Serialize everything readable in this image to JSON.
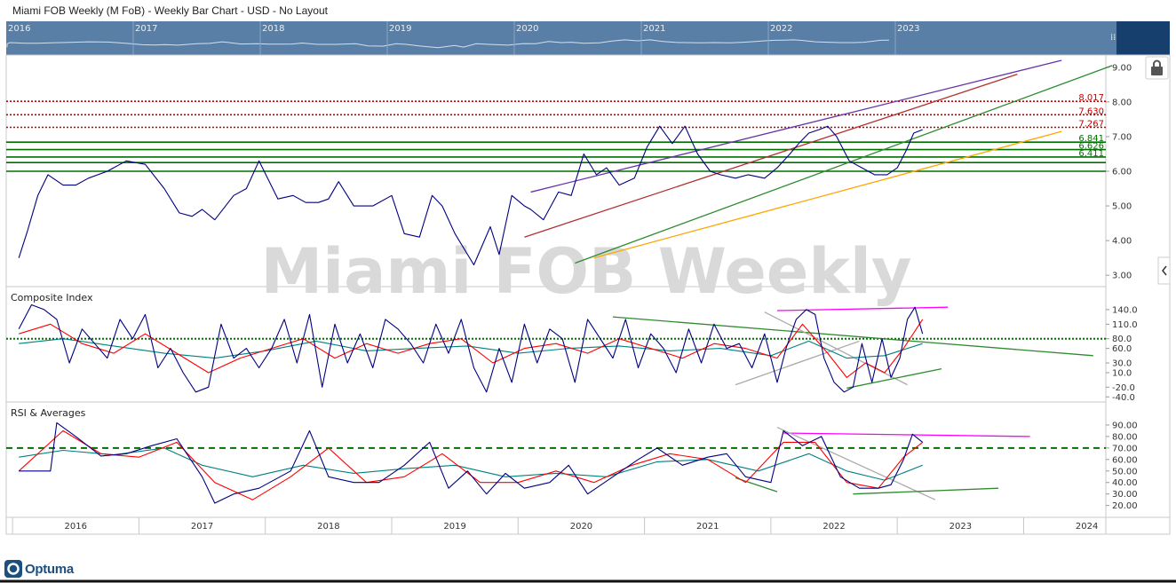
{
  "header": {
    "title": "Miami FOB Weekly (M FoB) - Weekly Bar Chart - USD - No Layout"
  },
  "navigator": {
    "years": [
      "2016",
      "2017",
      "2018",
      "2019",
      "2020",
      "2021",
      "2022",
      "2023"
    ]
  },
  "watermark": "Miami FOB Weekly",
  "brand": "Optuma",
  "icons": {
    "lock": "lock-icon",
    "expand": "chevron-left-icon",
    "logo": "optuma-logo-icon"
  },
  "colors": {
    "navigator_bg": "#5a7fa6",
    "navigator_right": "#173f6e",
    "price_line": "#000080",
    "red_avg": "#ff0000",
    "teal_avg": "#008080",
    "green_level": "#007000",
    "red_level": "#c00000"
  },
  "chart_data": [
    {
      "type": "line",
      "pane": "price",
      "x_axis_years": [
        "2016",
        "2017",
        "2018",
        "2019",
        "2020",
        "2021",
        "2022",
        "2023",
        "2024"
      ],
      "ylim": [
        2.8,
        9.2
      ],
      "y_ticks": [
        "9.00",
        "8.00",
        "7.00",
        "6.00",
        "5.00",
        "4.00",
        "3.00"
      ],
      "series": [
        {
          "x": [
            2015.55,
            2015.62,
            2015.7,
            2015.78,
            2015.9,
            2016.0,
            2016.1,
            2016.25,
            2016.4,
            2016.55,
            2016.7,
            2016.82,
            2016.92,
            2017.0,
            2017.1,
            2017.25,
            2017.35,
            2017.45,
            2017.6,
            2017.72,
            2017.82,
            2017.92,
            2018.0,
            2018.08,
            2018.2,
            2018.35,
            2018.5,
            2018.6,
            2018.72,
            2018.82,
            2018.9,
            2019.0,
            2019.15,
            2019.28,
            2019.35,
            2019.45,
            2019.55,
            2019.6,
            2019.7,
            2019.82,
            2019.92,
            2020.02,
            2020.12,
            2020.2,
            2020.3,
            2020.42,
            2020.52,
            2020.62,
            2020.72,
            2020.82,
            2020.92,
            2021.02,
            2021.1,
            2021.22,
            2021.32,
            2021.45,
            2021.55,
            2021.65,
            2021.72,
            2021.8,
            2021.88,
            2021.95,
            2022.02,
            2022.12,
            2022.22,
            2022.32,
            2022.42,
            2022.5,
            2022.57,
            2022.63,
            2022.7
          ],
          "y": [
            3.5,
            4.3,
            5.3,
            5.9,
            5.6,
            5.6,
            5.8,
            6.0,
            6.3,
            6.2,
            5.5,
            4.8,
            4.7,
            4.9,
            4.6,
            5.3,
            5.5,
            6.3,
            5.2,
            5.3,
            5.1,
            5.1,
            5.2,
            5.7,
            5.0,
            5.0,
            5.3,
            4.2,
            4.1,
            5.3,
            5.0,
            4.2,
            3.3,
            4.4,
            3.6,
            5.3,
            5.0,
            4.9,
            4.6,
            5.4,
            5.3,
            6.5,
            5.9,
            6.1,
            5.6,
            5.8,
            6.7,
            7.3,
            6.8,
            7.3,
            6.5,
            6.0,
            5.9,
            5.8,
            5.9,
            5.8,
            6.1,
            6.5,
            6.8,
            7.1,
            7.2,
            7.3,
            7.0,
            6.3,
            6.1,
            5.9,
            5.9,
            6.1,
            6.6,
            7.1,
            7.2
          ]
        }
      ],
      "horizontal_levels": [
        {
          "value": 8.017,
          "label": "8.017",
          "color": "#c00000",
          "style": "dotted"
        },
        {
          "value": 7.63,
          "label": "7.630",
          "color": "#c00000",
          "style": "dotted"
        },
        {
          "value": 7.267,
          "label": "7.267",
          "color": "#c00000",
          "style": "dotted"
        },
        {
          "value": 6.841,
          "label": "6.841",
          "color": "#007000",
          "style": "solid"
        },
        {
          "value": 6.626,
          "label": "6.626",
          "color": "#007000",
          "style": "solid"
        },
        {
          "value": 6.411,
          "label": "6.411",
          "color": "#007000",
          "style": "solid"
        },
        {
          "value": 6.25,
          "label": "",
          "color": "#007000",
          "style": "solid"
        },
        {
          "value": 6.0,
          "label": "",
          "color": "#007000",
          "style": "solid"
        }
      ],
      "trendlines": [
        {
          "color": "#6633aa",
          "x1": 2019.6,
          "y1": 5.4,
          "x2": 2023.8,
          "y2": 9.2
        },
        {
          "color": "#b03030",
          "x1": 2019.55,
          "y1": 4.1,
          "x2": 2023.45,
          "y2": 8.8
        },
        {
          "color": "#2e8b2e",
          "x1": 2019.95,
          "y1": 3.35,
          "x2": 2024.2,
          "y2": 9.05
        },
        {
          "color": "#ffa500",
          "x1": 2020.1,
          "y1": 3.5,
          "x2": 2023.8,
          "y2": 7.15
        }
      ]
    },
    {
      "type": "line",
      "pane": "composite",
      "title": "Composite Index",
      "ylim": [
        -45,
        160
      ],
      "y_ticks": [
        "140.0",
        "110.0",
        "80.0",
        "60.0",
        "30.0",
        "10.0",
        "-20.0",
        "-40.0"
      ],
      "reference_line": {
        "value": 80,
        "color": "#007000",
        "style": "dotted"
      },
      "series": [
        {
          "color": "#000080",
          "x": [
            2015.55,
            2015.65,
            2015.75,
            2015.85,
            2015.95,
            2016.05,
            2016.15,
            2016.25,
            2016.35,
            2016.45,
            2016.55,
            2016.65,
            2016.75,
            2016.85,
            2016.95,
            2017.05,
            2017.15,
            2017.25,
            2017.35,
            2017.45,
            2017.55,
            2017.65,
            2017.75,
            2017.85,
            2017.95,
            2018.05,
            2018.15,
            2018.25,
            2018.35,
            2018.45,
            2018.55,
            2018.65,
            2018.75,
            2018.85,
            2018.95,
            2019.05,
            2019.15,
            2019.25,
            2019.35,
            2019.45,
            2019.55,
            2019.65,
            2019.75,
            2019.85,
            2019.95,
            2020.05,
            2020.15,
            2020.25,
            2020.35,
            2020.45,
            2020.55,
            2020.65,
            2020.75,
            2020.85,
            2020.95,
            2021.05,
            2021.15,
            2021.25,
            2021.35,
            2021.45,
            2021.55,
            2021.62,
            2021.7,
            2021.78,
            2021.85,
            2021.92,
            2022.0,
            2022.08,
            2022.15,
            2022.22,
            2022.3,
            2022.38,
            2022.45,
            2022.52,
            2022.58,
            2022.64,
            2022.7
          ],
          "y": [
            100,
            150,
            140,
            120,
            30,
            100,
            70,
            40,
            120,
            80,
            130,
            20,
            60,
            10,
            -30,
            -20,
            110,
            40,
            60,
            20,
            60,
            120,
            30,
            130,
            -20,
            110,
            30,
            90,
            20,
            120,
            100,
            70,
            30,
            110,
            50,
            120,
            20,
            -30,
            60,
            -10,
            110,
            30,
            100,
            80,
            -10,
            120,
            80,
            40,
            120,
            20,
            90,
            60,
            10,
            100,
            30,
            110,
            60,
            70,
            20,
            90,
            -10,
            60,
            120,
            140,
            130,
            40,
            -10,
            -30,
            -20,
            70,
            -10,
            80,
            0,
            40,
            120,
            145,
            90
          ]
        },
        {
          "color": "#ff0000",
          "x": [
            2015.55,
            2015.8,
            2016.05,
            2016.3,
            2016.55,
            2016.8,
            2017.05,
            2017.3,
            2017.55,
            2017.8,
            2018.05,
            2018.3,
            2018.55,
            2018.8,
            2019.05,
            2019.3,
            2019.55,
            2019.8,
            2020.05,
            2020.3,
            2020.55,
            2020.8,
            2021.05,
            2021.3,
            2021.55,
            2021.75,
            2021.95,
            2022.1,
            2022.25,
            2022.4,
            2022.55,
            2022.7
          ],
          "y": [
            90,
            110,
            70,
            50,
            90,
            50,
            10,
            40,
            60,
            80,
            40,
            70,
            50,
            70,
            80,
            30,
            60,
            70,
            50,
            80,
            60,
            40,
            70,
            60,
            40,
            110,
            50,
            0,
            30,
            10,
            60,
            120
          ]
        },
        {
          "color": "#008080",
          "x": [
            2015.55,
            2015.9,
            2016.3,
            2016.7,
            2017.1,
            2017.5,
            2017.9,
            2018.3,
            2018.7,
            2019.1,
            2019.5,
            2019.9,
            2020.3,
            2020.7,
            2021.1,
            2021.5,
            2021.8,
            2022.1,
            2022.4,
            2022.7
          ],
          "y": [
            70,
            80,
            65,
            50,
            40,
            55,
            75,
            55,
            60,
            65,
            50,
            60,
            65,
            55,
            60,
            45,
            75,
            40,
            45,
            70
          ]
        }
      ],
      "trendlines": [
        {
          "color": "#2e8b2e",
          "x1": 2020.25,
          "y1": 125,
          "x2": 2024.05,
          "y2": 45
        },
        {
          "color": "#ff00ff",
          "x1": 2021.55,
          "y1": 138,
          "x2": 2022.9,
          "y2": 145
        },
        {
          "color": "#aaaaaa",
          "x1": 2021.45,
          "y1": 135,
          "x2": 2022.58,
          "y2": -15
        },
        {
          "color": "#aaaaaa",
          "x1": 2021.22,
          "y1": -15,
          "x2": 2022.2,
          "y2": 75
        },
        {
          "color": "#2e8b2e",
          "x1": 2022.1,
          "y1": -22,
          "x2": 2022.85,
          "y2": 18
        }
      ]
    },
    {
      "type": "line",
      "pane": "rsi",
      "title": "RSI & Averages",
      "ylim": [
        12,
        100
      ],
      "y_ticks": [
        "90.00",
        "80.00",
        "70.00",
        "60.00",
        "50.00",
        "40.00",
        "30.00",
        "20.00"
      ],
      "reference_line": {
        "value": 70,
        "color": "#007000",
        "style": "dashed"
      },
      "series": [
        {
          "color": "#000080",
          "x": [
            2015.55,
            2015.8,
            2015.85,
            2016.0,
            2016.2,
            2016.4,
            2016.6,
            2016.8,
            2017.0,
            2017.1,
            2017.25,
            2017.45,
            2017.7,
            2017.85,
            2018.0,
            2018.2,
            2018.4,
            2018.6,
            2018.8,
            2018.95,
            2019.1,
            2019.25,
            2019.4,
            2019.55,
            2019.75,
            2019.9,
            2020.05,
            2020.25,
            2020.45,
            2020.6,
            2020.8,
            2021.0,
            2021.15,
            2021.3,
            2021.5,
            2021.6,
            2021.75,
            2021.9,
            2022.05,
            2022.2,
            2022.35,
            2022.45,
            2022.55,
            2022.62,
            2022.7
          ],
          "y": [
            50,
            50,
            92,
            80,
            63,
            65,
            72,
            78,
            45,
            22,
            30,
            35,
            50,
            85,
            45,
            40,
            40,
            55,
            75,
            35,
            50,
            30,
            48,
            35,
            40,
            55,
            30,
            45,
            60,
            70,
            55,
            62,
            65,
            45,
            40,
            85,
            72,
            80,
            45,
            35,
            35,
            38,
            60,
            82,
            75
          ]
        },
        {
          "color": "#ff0000",
          "x": [
            2015.55,
            2015.9,
            2016.2,
            2016.5,
            2016.8,
            2017.1,
            2017.4,
            2017.7,
            2018.0,
            2018.3,
            2018.6,
            2018.9,
            2019.2,
            2019.5,
            2019.8,
            2020.1,
            2020.4,
            2020.7,
            2021.0,
            2021.3,
            2021.6,
            2021.85,
            2022.1,
            2022.35,
            2022.55,
            2022.7
          ],
          "y": [
            50,
            85,
            65,
            62,
            75,
            40,
            25,
            45,
            70,
            40,
            45,
            65,
            40,
            40,
            50,
            40,
            55,
            65,
            60,
            40,
            75,
            75,
            40,
            35,
            62,
            75
          ]
        },
        {
          "color": "#008080",
          "x": [
            2015.55,
            2015.9,
            2016.3,
            2016.7,
            2017.0,
            2017.4,
            2017.8,
            2018.2,
            2018.6,
            2019.0,
            2019.4,
            2019.8,
            2020.2,
            2020.6,
            2021.0,
            2021.4,
            2021.8,
            2022.1,
            2022.4,
            2022.7
          ],
          "y": [
            62,
            68,
            64,
            70,
            55,
            45,
            55,
            48,
            52,
            55,
            45,
            48,
            45,
            58,
            60,
            50,
            65,
            50,
            42,
            55
          ]
        }
      ],
      "trendlines": [
        {
          "color": "#ff00ff",
          "x1": 2021.6,
          "y1": 83,
          "x2": 2023.55,
          "y2": 80
        },
        {
          "color": "#aaaaaa",
          "x1": 2021.55,
          "y1": 88,
          "x2": 2022.8,
          "y2": 25
        },
        {
          "color": "#2e8b2e",
          "x1": 2022.15,
          "y1": 30,
          "x2": 2023.3,
          "y2": 35
        },
        {
          "color": "#2e8b2e",
          "x1": 2021.22,
          "y1": 44,
          "x2": 2021.55,
          "y2": 32
        }
      ]
    }
  ]
}
